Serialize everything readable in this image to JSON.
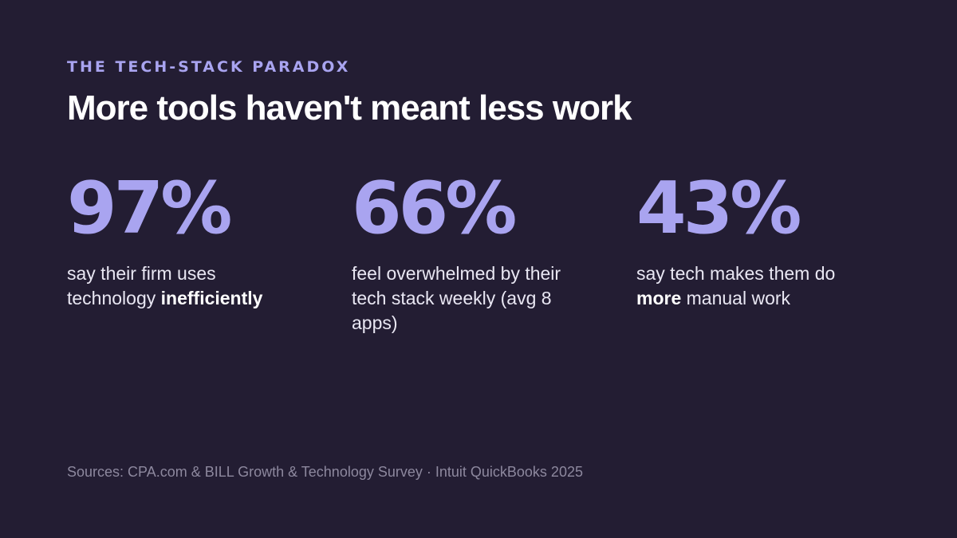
{
  "slide": {
    "eyebrow": "THE TECH-STACK PARADOX",
    "headline": "More tools haven't meant less work",
    "stats": [
      {
        "value": "97%",
        "desc_before": "say their firm uses technology ",
        "desc_bold": "inefficiently",
        "desc_after": ""
      },
      {
        "value": "66%",
        "desc_before": "feel overwhelmed by their tech stack weekly (avg 8 apps)",
        "desc_bold": "",
        "desc_after": ""
      },
      {
        "value": "43%",
        "desc_before": "say tech makes them do ",
        "desc_bold": "more",
        "desc_after": " manual work"
      }
    ],
    "source": "Sources: CPA.com & BILL Growth & Technology Survey · Intuit QuickBooks 2025"
  },
  "colors": {
    "background": "#231d33",
    "accent": "#a9a4f0",
    "headline": "#ffffff",
    "body_text": "#e9e7f3",
    "muted": "#8d889e"
  }
}
